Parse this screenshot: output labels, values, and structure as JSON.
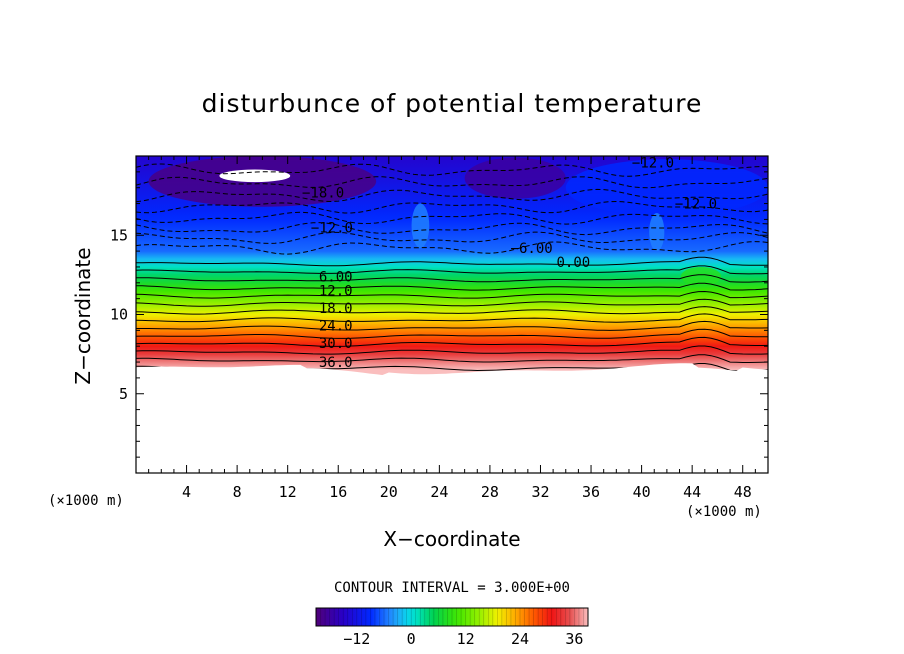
{
  "chart_data": {
    "type": "heatmap",
    "title": "disturbunce of potential temperature",
    "xlabel": "X−coordinate",
    "ylabel": "Z−coordinate",
    "x_unit": "(×1000 m)",
    "y_unit": "(×1000 m)",
    "xlim": [
      0,
      50
    ],
    "ylim": [
      0,
      20
    ],
    "x_ticks": [
      4,
      8,
      12,
      16,
      20,
      24,
      28,
      32,
      36,
      40,
      44,
      48
    ],
    "y_ticks": [
      5,
      10,
      15
    ],
    "contour_interval_text": "CONTOUR INTERVAL = 3.000E+00",
    "contour_interval": 3,
    "colorbar": {
      "min": -21,
      "max": 39,
      "ticks": [
        -12,
        0,
        12,
        24,
        36
      ],
      "tick_labels": [
        "−12",
        "0",
        "12",
        "24",
        "36"
      ]
    },
    "contour_labels": [
      {
        "text": "−12.0",
        "x": 40.9,
        "y": 19.6
      },
      {
        "text": "−18.0",
        "x": 14.8,
        "y": 17.7
      },
      {
        "text": "−12.0",
        "x": 15.5,
        "y": 15.5
      },
      {
        "text": "−12.0",
        "x": 44.3,
        "y": 17.0
      },
      {
        "text": "−6.00",
        "x": 31.3,
        "y": 14.2
      },
      {
        "text": "0.00",
        "x": 34.6,
        "y": 13.3
      },
      {
        "text": "6.00",
        "x": 15.8,
        "y": 12.4
      },
      {
        "text": "12.0",
        "x": 15.8,
        "y": 11.5
      },
      {
        "text": "18.0",
        "x": 15.8,
        "y": 10.4
      },
      {
        "text": "24.0",
        "x": 15.8,
        "y": 9.3
      },
      {
        "text": "30.0",
        "x": 15.8,
        "y": 8.2
      },
      {
        "text": "36.0",
        "x": 15.8,
        "y": 7.0
      }
    ],
    "grid": false,
    "legend": "colorbar bottom"
  }
}
